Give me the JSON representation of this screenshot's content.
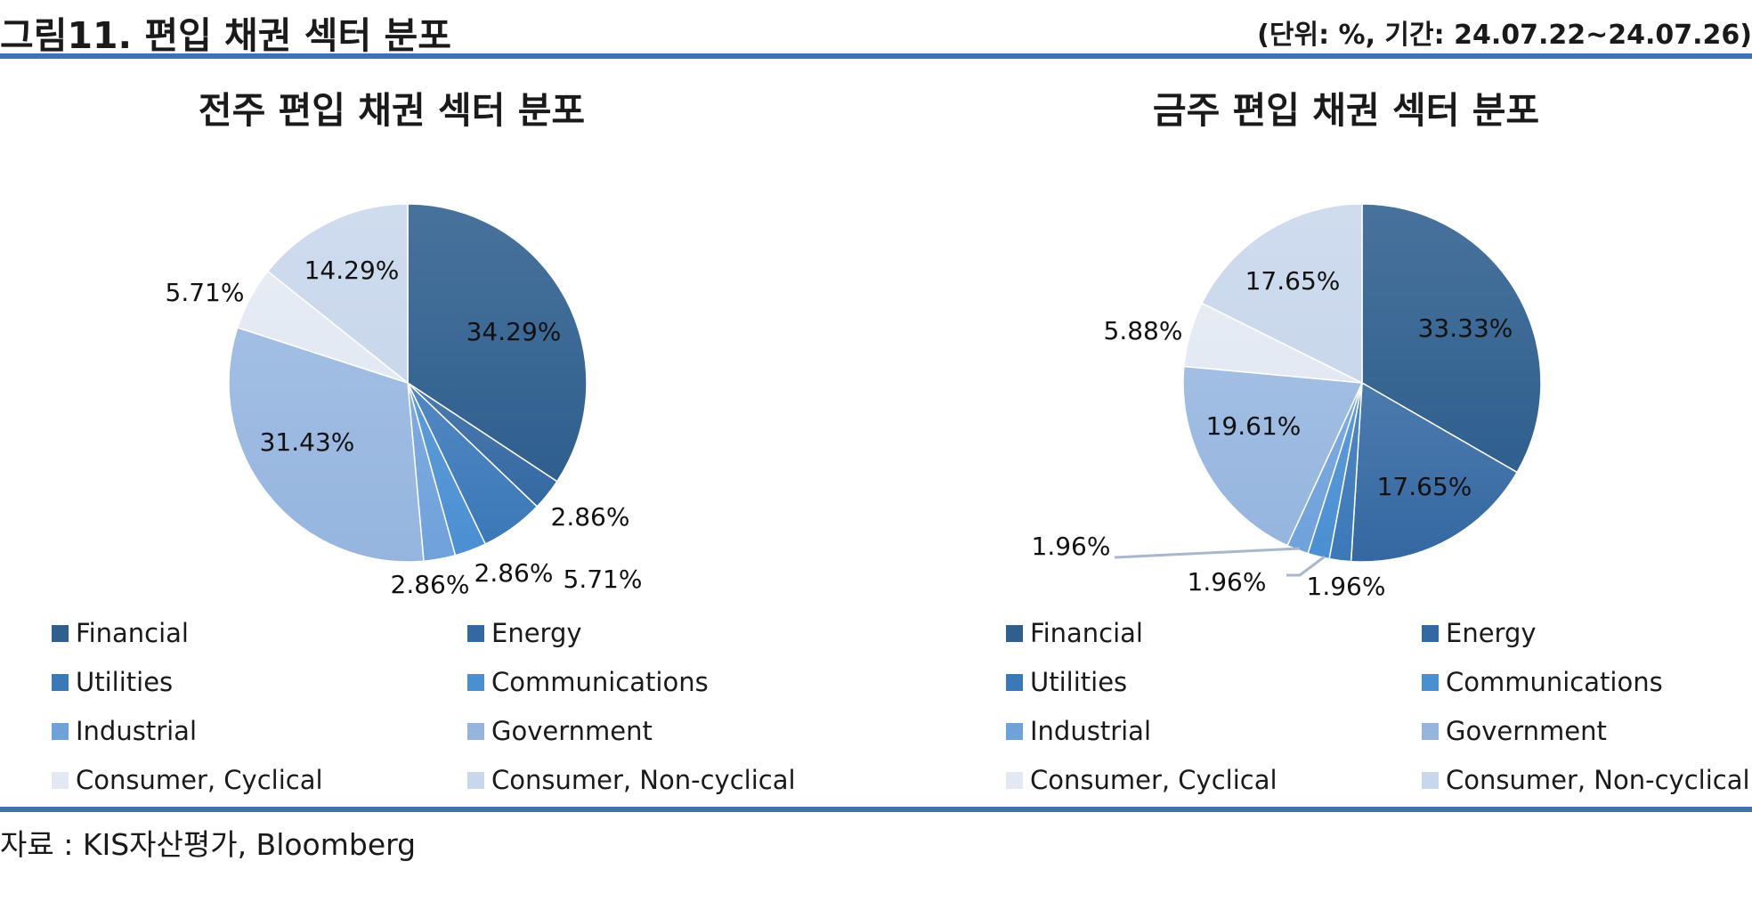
{
  "header": {
    "figure_title": "그림11. 편입 채권 섹터 분포",
    "unit_note": "(단위: %, 기간: 24.07.22~24.07.26)"
  },
  "footer": {
    "source": "자료 : KIS자산평가, Bloomberg"
  },
  "colors": {
    "rule": "#3c73b0",
    "Financial": "#2f5f8e",
    "Energy": "#3468a2",
    "Utilities": "#3b78b8",
    "Communications": "#4a8fd2",
    "Industrial": "#6fa1db",
    "Government": "#95b5df",
    "Consumer, Cyclical": "#e3e9f3",
    "Consumer, Non-cyclical": "#c9d7ec"
  },
  "chart_data": [
    {
      "type": "pie",
      "title": "전주 편입 채권 섹터 분포",
      "legend_position": "bottom",
      "categories": [
        "Financial",
        "Energy",
        "Utilities",
        "Communications",
        "Industrial",
        "Government",
        "Consumer, Cyclical",
        "Consumer, Non-cyclical"
      ],
      "values": [
        34.29,
        2.86,
        5.71,
        2.86,
        2.86,
        31.43,
        5.71,
        14.29
      ],
      "labels": [
        "34.29%",
        "2.86%",
        "5.71%",
        "2.86%",
        "2.86%",
        "31.43%",
        "5.71%",
        "14.29%"
      ]
    },
    {
      "type": "pie",
      "title": "금주 편입 채권 섹터 분포",
      "legend_position": "bottom",
      "categories": [
        "Financial",
        "Energy",
        "Utilities",
        "Communications",
        "Industrial",
        "Government",
        "Consumer, Cyclical",
        "Consumer, Non-cyclical"
      ],
      "values": [
        33.33,
        17.65,
        1.96,
        1.96,
        1.96,
        19.61,
        5.88,
        17.65
      ],
      "labels": [
        "33.33%",
        "17.65%",
        "1.96%",
        "1.96%",
        "1.96%",
        "19.61%",
        "5.88%",
        "17.65%"
      ]
    }
  ]
}
